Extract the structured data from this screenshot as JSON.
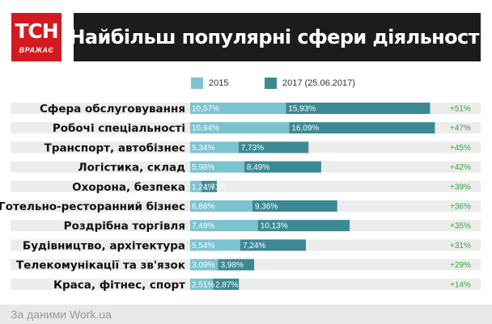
{
  "logo": {
    "main": "ТСН",
    "sub": "ВРАЖАЄ"
  },
  "header": {
    "title": "Найбільш популярні сфери діяльності"
  },
  "colors": {
    "series_2015": "#7cc3d0",
    "series_2017": "#3c8993",
    "change": "#3aa33a",
    "band": "#ececec"
  },
  "chart_data": {
    "type": "bar",
    "orientation": "horizontal",
    "stacked": true,
    "title": "Найбільш популярні сфери діяльності",
    "legend_position": "top",
    "categories": [
      "Сфера обслуговування",
      "Робочі спеціальності",
      "Транспорт, автобізнес",
      "Логістика, склад",
      "Охорона, безпека",
      "Готельно-ресторанний бізнес",
      "Роздрібна торгівля",
      "Будівництво, архітектура",
      "Телекомунікації та зв'язок",
      "Краса, фітнес, спорт"
    ],
    "series": [
      {
        "name": "2015",
        "values": [
          10.57,
          10.94,
          5.34,
          5.98,
          1.24,
          6.88,
          7.49,
          5.54,
          3.09,
          2.51
        ],
        "labels": [
          "10,57%",
          "10,94%",
          "5,34%",
          "5,98%",
          "1,24%",
          "6,88%",
          "7,49%",
          "5,54%",
          "3,09%",
          "2,51%"
        ]
      },
      {
        "name": "2017 (25.06.2017)",
        "values": [
          15.93,
          16.09,
          7.73,
          8.49,
          1.71,
          9.36,
          10.13,
          7.24,
          3.98,
          2.87
        ],
        "labels": [
          "15,93%",
          "16,09%",
          "7,73%",
          "8,49%",
          "1,71%",
          "9,36%",
          "10,13%",
          "7,24%",
          "3,98%",
          "2,87%"
        ]
      }
    ],
    "changes": [
      "+51%",
      "+47%",
      "+45%",
      "+42%",
      "+39%",
      "+36%",
      "+35%",
      "+31%",
      "+29%",
      "+14%"
    ]
  },
  "footer": {
    "source": "За даними Work.ua"
  }
}
